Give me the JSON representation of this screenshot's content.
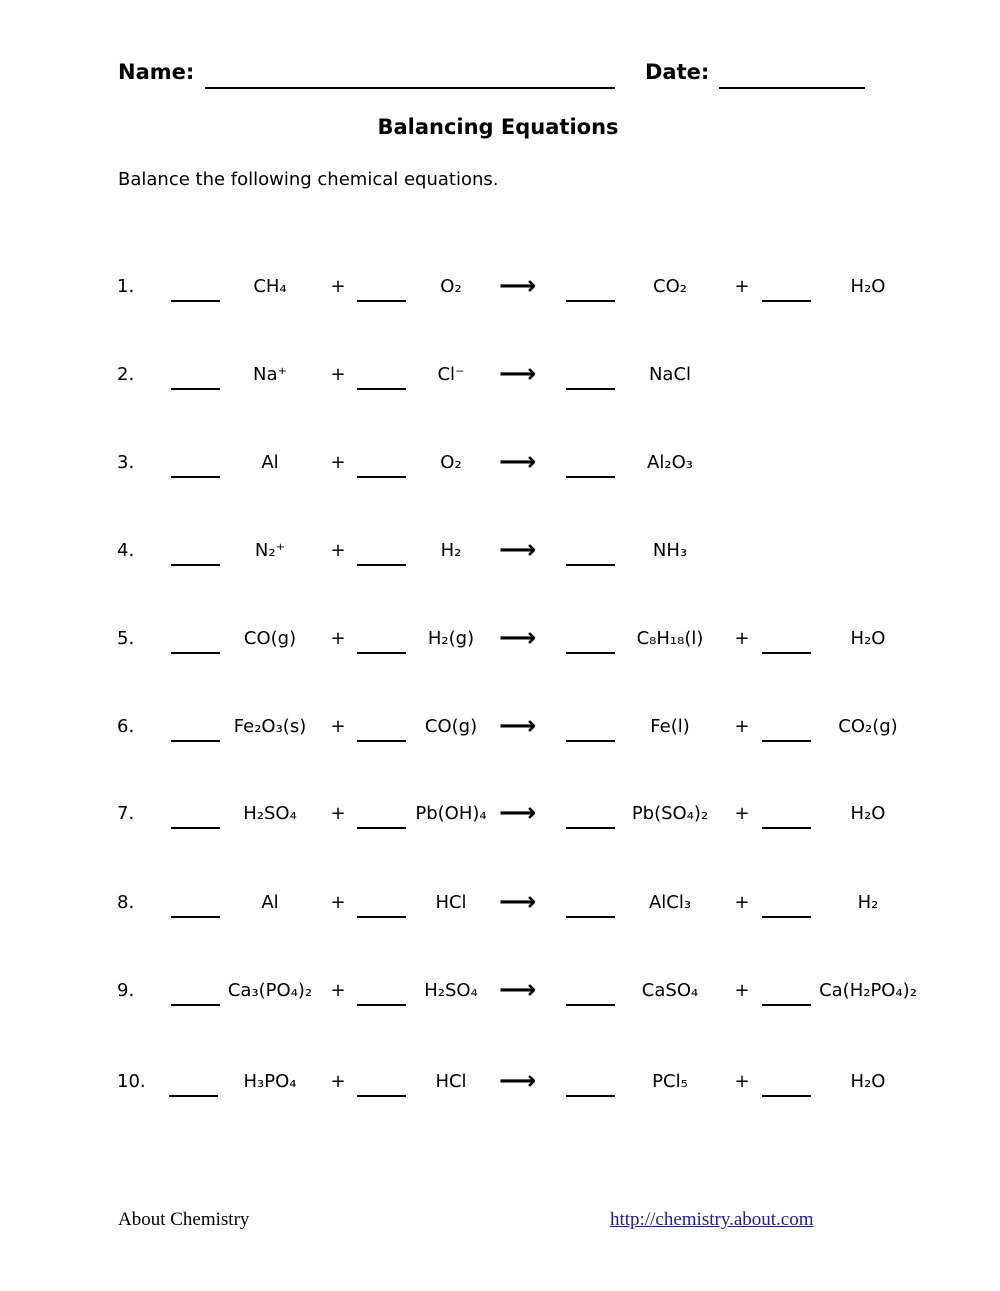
{
  "header": {
    "name_label": "Name:",
    "date_label": "Date:"
  },
  "title": "Balancing Equations",
  "instructions": "Balance the following chemical equations.",
  "arrow_icon": "right-arrow",
  "equations": [
    {
      "number": "1.",
      "r1": "CH₄",
      "r2": "O₂",
      "p1": "CO₂",
      "p2": "H₂O"
    },
    {
      "number": "2.",
      "r1": "Na⁺",
      "r2": "Cl⁻",
      "p1": "NaCl",
      "p2": null
    },
    {
      "number": "3.",
      "r1": "Al",
      "r2": "O₂",
      "p1": "Al₂O₃",
      "p2": null
    },
    {
      "number": "4.",
      "r1": "N₂⁺",
      "r2": "H₂",
      "p1": "NH₃",
      "p2": null
    },
    {
      "number": "5.",
      "r1": "CO(g)",
      "r2": "H₂(g)",
      "p1": "C₈H₁₈(l)",
      "p2": "H₂O"
    },
    {
      "number": "6.",
      "r1": "Fe₂O₃(s)",
      "r2": "CO(g)",
      "p1": "Fe(l)",
      "p2": "CO₂(g)"
    },
    {
      "number": "7.",
      "r1": "H₂SO₄",
      "r2": "Pb(OH)₄",
      "p1": "Pb(SO₄)₂",
      "p2": "H₂O"
    },
    {
      "number": "8.",
      "r1": "Al",
      "r2": "HCl",
      "p1": "AlCl₃",
      "p2": "H₂"
    },
    {
      "number": "9.",
      "r1": "Ca₃(PO₄)₂",
      "r2": "H₂SO₄",
      "p1": "CaSO₄",
      "p2": "Ca(H₂PO₄)₂"
    },
    {
      "number": "10.",
      "r1": "H₃PO₄",
      "r2": "HCl",
      "p1": "PCl₅",
      "p2": "H₂O"
    }
  ],
  "plus": "+",
  "arrow": "⟶",
  "footer": {
    "left": "About Chemistry",
    "link": "http://chemistry.about.com"
  },
  "colors": {
    "link": "#1a1aa6"
  }
}
